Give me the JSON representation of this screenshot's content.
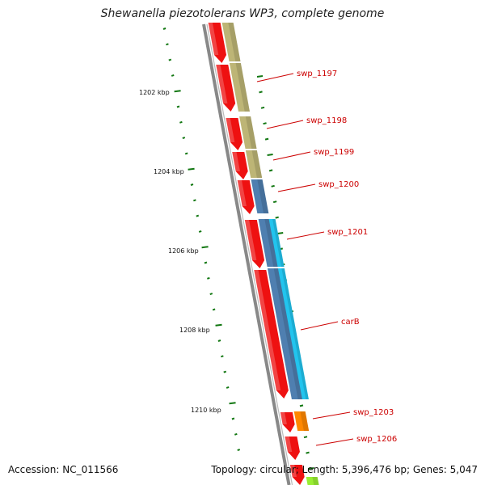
{
  "title": "Shewanella piezotolerans WP3, complete genome",
  "footer": {
    "accession": "Accession: NC_011566",
    "topology": "Topology: circular; Length: 5,396,476 bp; Genes: 5,047"
  },
  "scale_labels": [
    "1202 kbp",
    "1204 kbp",
    "1206 kbp",
    "1208 kbp",
    "1210 kbp"
  ],
  "gene_labels": [
    "swp_1197",
    "swp_1198",
    "swp_1199",
    "swp_1200",
    "swp_1201",
    "carB",
    "swp_1203",
    "swp_1206"
  ],
  "colors": {
    "cds": "#ee1111",
    "cog_khaki": "#bdb576",
    "cog_steelblue": "#4f7fb0",
    "cog_cyan": "#22c4ee",
    "cog_orange": "#ff8800",
    "cog_lime": "#99ee33",
    "backbone": "#888888",
    "tick": "#117711",
    "label": "#cc0000"
  }
}
